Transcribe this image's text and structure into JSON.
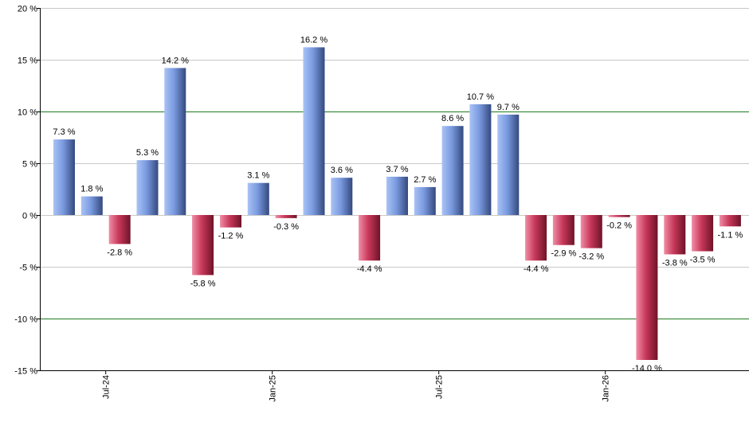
{
  "chart_data": {
    "type": "bar",
    "title": "",
    "xlabel": "",
    "ylabel": "",
    "ylim": [
      -15,
      20
    ],
    "yticks": [
      20,
      15,
      10,
      5,
      0,
      -5,
      -10,
      -15
    ],
    "ytick_suffix": " %",
    "grid": true,
    "highlight_gridlines": [
      10,
      -10
    ],
    "x_tick_labels": [
      {
        "label": "Jul-24",
        "after_index": 1
      },
      {
        "label": "Jan-25",
        "after_index": 7
      },
      {
        "label": "Jul-25",
        "after_index": 13
      },
      {
        "label": "Jan-26",
        "after_index": 19
      }
    ],
    "values": [
      7.3,
      1.8,
      -2.8,
      5.3,
      14.2,
      -5.8,
      -1.2,
      3.1,
      -0.3,
      16.2,
      3.6,
      -4.4,
      3.7,
      2.7,
      8.6,
      10.7,
      9.7,
      -4.4,
      -2.9,
      -3.2,
      -0.2,
      -14.0,
      -3.8,
      -3.5,
      -1.1
    ],
    "data_labels": [
      "7.3 %",
      "1.8 %",
      "-2.8 %",
      "5.3 %",
      "14.2 %",
      "-5.8 %",
      "-1.2 %",
      "3.1 %",
      "-0.3 %",
      "16.2 %",
      "3.6 %",
      "-4.4 %",
      "3.7 %",
      "2.7 %",
      "8.6 %",
      "10.7 %",
      "9.7 %",
      "-4.4 %",
      "-2.9 %",
      "-3.2 %",
      "-0.2 %",
      "-14.0 %",
      "-3.8 %",
      "-3.5 %",
      "-1.1 %"
    ],
    "colors": {
      "positive": "#7a9ae0",
      "negative": "#c8385a",
      "grid": "#c8c8c8",
      "highlight_grid": "#1e7a1e",
      "axis": "#000000"
    }
  }
}
